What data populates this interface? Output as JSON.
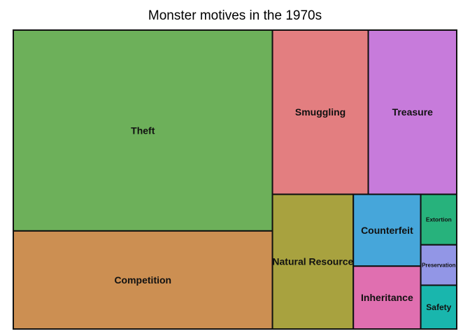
{
  "chart_data": {
    "type": "treemap",
    "title": "Monster motives in the 1970s",
    "items": [
      {
        "label": "Theft",
        "value": 43,
        "color": "#6db05a"
      },
      {
        "label": "Competition",
        "value": 21,
        "color": "#cc8f52"
      },
      {
        "label": "Smuggling",
        "value": 13,
        "color": "#e37e80"
      },
      {
        "label": "Treasure",
        "value": 12,
        "color": "#c77bdb"
      },
      {
        "label": "Natural Resource",
        "value": 9,
        "color": "#a8a23f"
      },
      {
        "label": "Counterfeit",
        "value": 4,
        "color": "#46a6da"
      },
      {
        "label": "Inheritance",
        "value": 3.5,
        "color": "#e06fb0"
      },
      {
        "label": "Extortion",
        "value": 1.5,
        "color": "#27b27c"
      },
      {
        "label": "Preservation",
        "value": 1.2,
        "color": "#9296e6"
      },
      {
        "label": "Safety",
        "value": 1.3,
        "color": "#19b6ad"
      }
    ]
  }
}
